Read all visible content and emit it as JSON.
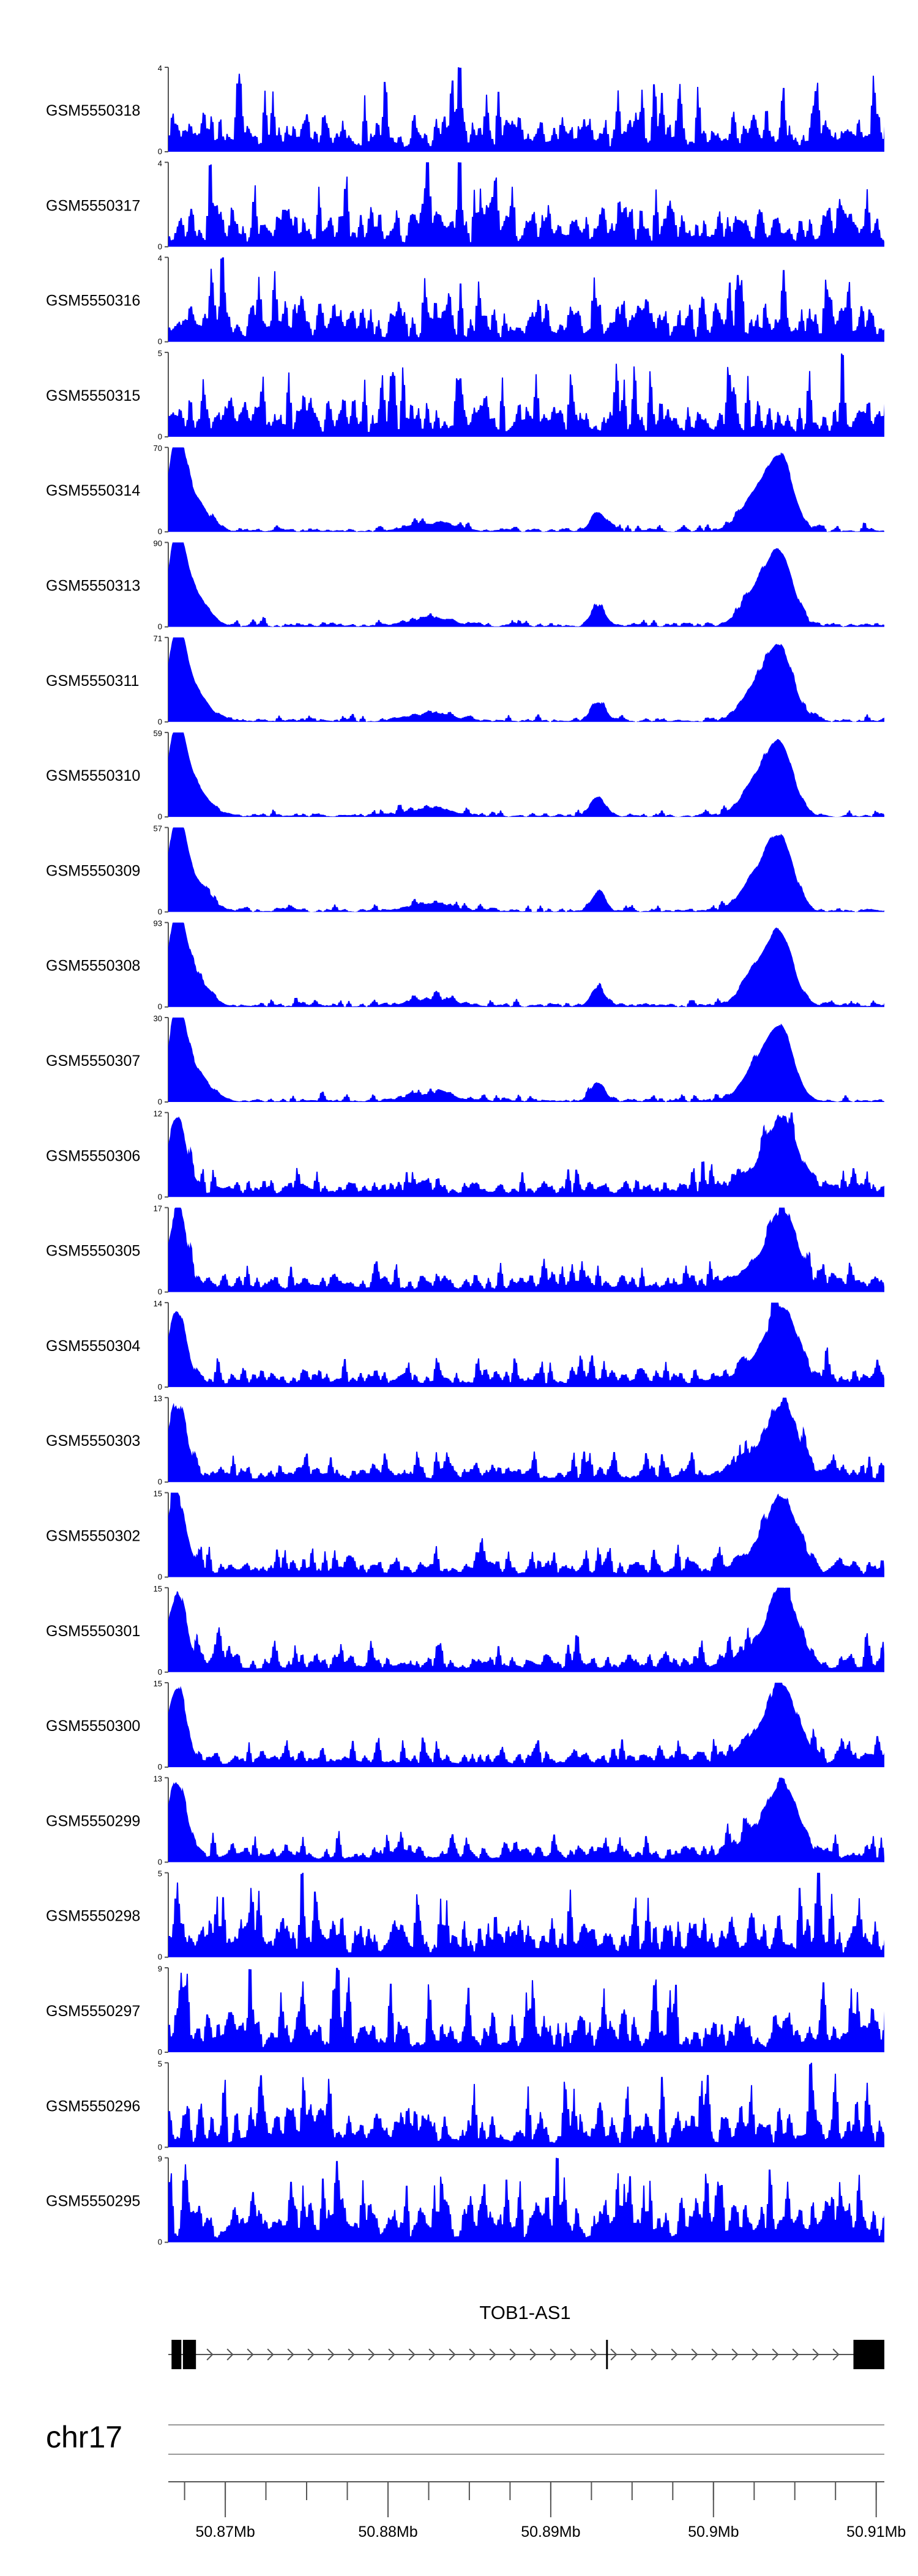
{
  "chart_data": {
    "type": "area",
    "fill_color": "#0000ff",
    "x_range": [
      50.8665,
      50.9105
    ],
    "tracks": [
      {
        "name": "GSM5550318",
        "ymax": 4,
        "ymin": 0,
        "profile": "flat"
      },
      {
        "name": "GSM5550317",
        "ymax": 4,
        "ymin": 0,
        "profile": "flat"
      },
      {
        "name": "GSM5550316",
        "ymax": 4,
        "ymin": 0,
        "profile": "flat"
      },
      {
        "name": "GSM5550315",
        "ymax": 5,
        "ymin": 0,
        "profile": "flat"
      },
      {
        "name": "GSM5550314",
        "ymax": 70,
        "ymin": 0,
        "profile": "peaks"
      },
      {
        "name": "GSM5550313",
        "ymax": 90,
        "ymin": 0,
        "profile": "peaks"
      },
      {
        "name": "GSM5550311",
        "ymax": 71,
        "ymin": 0,
        "profile": "peaks"
      },
      {
        "name": "GSM5550310",
        "ymax": 59,
        "ymin": 0,
        "profile": "peaks"
      },
      {
        "name": "GSM5550309",
        "ymax": 57,
        "ymin": 0,
        "profile": "peaks"
      },
      {
        "name": "GSM5550308",
        "ymax": 93,
        "ymin": 0,
        "profile": "peaks"
      },
      {
        "name": "GSM5550307",
        "ymax": 30,
        "ymin": 0,
        "profile": "peaks"
      },
      {
        "name": "GSM5550306",
        "ymax": 12,
        "ymin": 0,
        "profile": "mid"
      },
      {
        "name": "GSM5550305",
        "ymax": 17,
        "ymin": 0,
        "profile": "mid"
      },
      {
        "name": "GSM5550304",
        "ymax": 14,
        "ymin": 0,
        "profile": "mid"
      },
      {
        "name": "GSM5550303",
        "ymax": 13,
        "ymin": 0,
        "profile": "mid"
      },
      {
        "name": "GSM5550302",
        "ymax": 15,
        "ymin": 0,
        "profile": "mid"
      },
      {
        "name": "GSM5550301",
        "ymax": 15,
        "ymin": 0,
        "profile": "mid"
      },
      {
        "name": "GSM5550300",
        "ymax": 15,
        "ymin": 0,
        "profile": "mid"
      },
      {
        "name": "GSM5550299",
        "ymax": 13,
        "ymin": 0,
        "profile": "mid"
      },
      {
        "name": "GSM5550298",
        "ymax": 5,
        "ymin": 0,
        "profile": "flat"
      },
      {
        "name": "GSM5550297",
        "ymax": 9,
        "ymin": 0,
        "profile": "flat"
      },
      {
        "name": "GSM5550296",
        "ymax": 5,
        "ymin": 0,
        "profile": "flat"
      },
      {
        "name": "GSM5550295",
        "ymax": 9,
        "ymin": 0,
        "profile": "flat"
      }
    ],
    "gene": {
      "name": "TOB1-AS1",
      "strand": "+",
      "exons": [
        [
          50.8667,
          50.8673
        ],
        [
          50.8674,
          50.8682
        ],
        [
          50.8934,
          50.8935
        ],
        [
          50.9086,
          50.9105
        ]
      ]
    },
    "chromosome": "chr17",
    "axis": {
      "ticks": [
        50.87,
        50.88,
        50.89,
        50.9,
        50.91
      ],
      "tick_labels": [
        "50.87Mb",
        "50.88Mb",
        "50.89Mb",
        "50.9Mb",
        "50.91Mb"
      ],
      "minor_tick_step": 0.0025
    }
  }
}
